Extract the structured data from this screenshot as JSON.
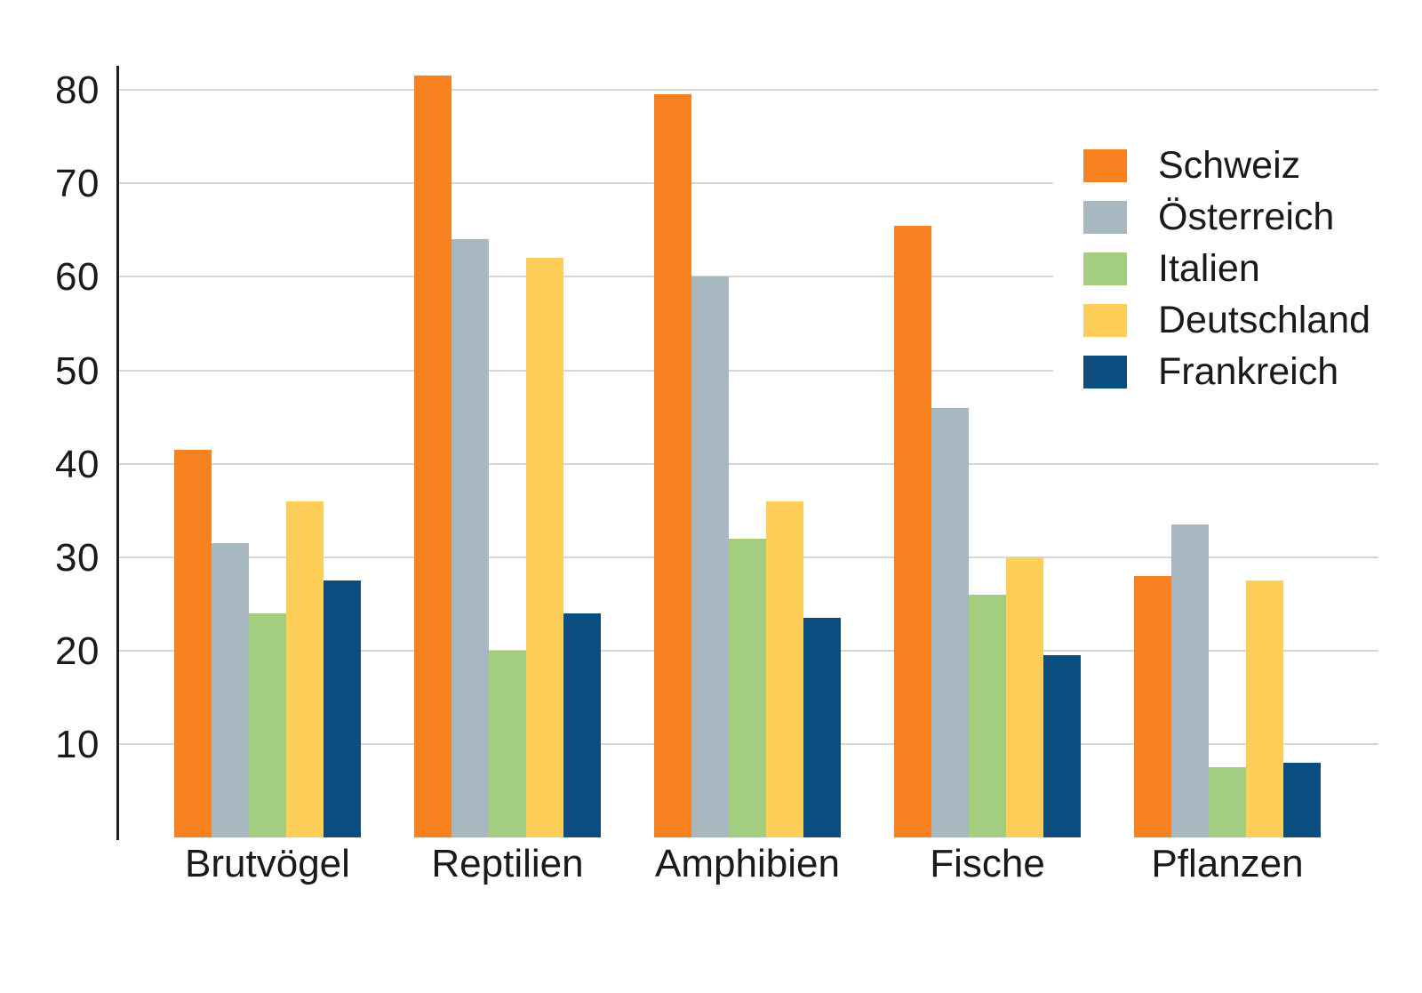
{
  "chart_data": {
    "type": "bar",
    "title": "",
    "xlabel": "",
    "ylabel": "",
    "categories": [
      "Brutvögel",
      "Reptilien",
      "Amphibien",
      "Fische",
      "Pflanzen"
    ],
    "series": [
      {
        "name": "Schweiz",
        "color": "#f8821f",
        "values": [
          41.5,
          81.5,
          79.5,
          65.5,
          28
        ]
      },
      {
        "name": "Österreich",
        "color": "#a7b8c0",
        "values": [
          31.5,
          64,
          60,
          46,
          33.5
        ]
      },
      {
        "name": "Italien",
        "color": "#a3ce80",
        "values": [
          24,
          20,
          32,
          26,
          7.5
        ]
      },
      {
        "name": "Deutschland",
        "color": "#fdce58",
        "values": [
          36,
          62,
          36,
          30,
          27.5
        ]
      },
      {
        "name": "Frankreich",
        "color": "#0b4d7e",
        "values": [
          27.5,
          24,
          23.5,
          19.5,
          8
        ]
      }
    ],
    "y_ticks": [
      10,
      20,
      30,
      40,
      50,
      60,
      70,
      80
    ],
    "ylim": [
      0,
      82.5
    ],
    "grid": true,
    "legend_position": "upper right",
    "colors": {
      "axis": "#1d1d1b",
      "gridline": "#dbd5d2",
      "text": "#1a1a1a",
      "background": "#ffffff"
    }
  }
}
